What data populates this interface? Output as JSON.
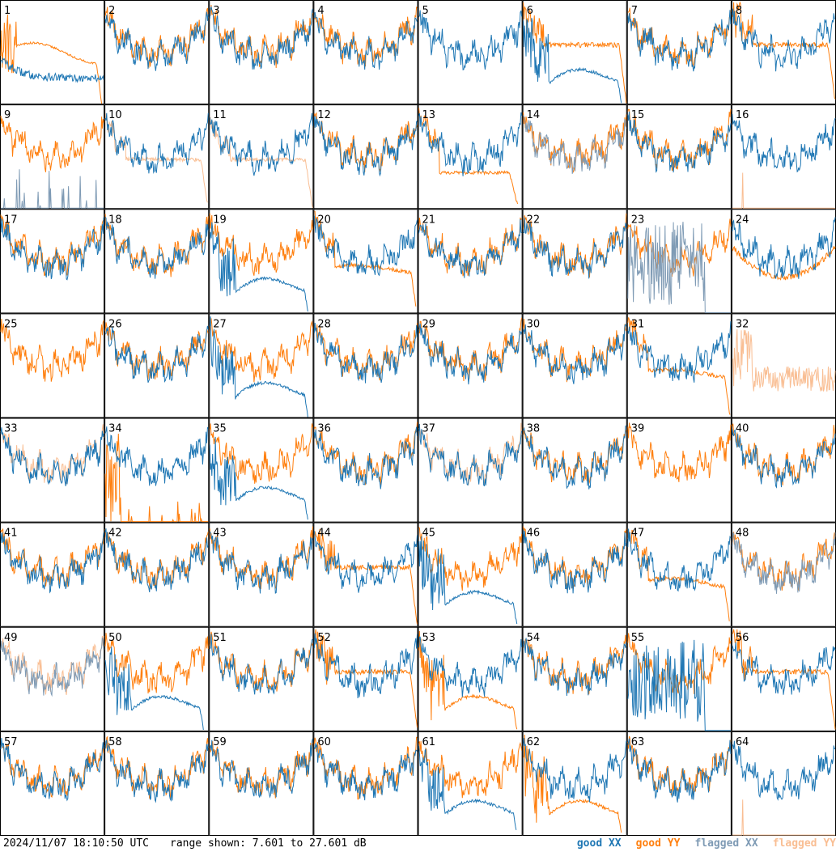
{
  "chart_data": {
    "type": "line",
    "layout": "small-multiples grid",
    "grid": {
      "rows": 8,
      "cols": 8
    },
    "ylim": [
      7.601,
      27.601
    ],
    "y_unit": "dB",
    "legend": [
      {
        "label": "good XX",
        "series": "good-xx",
        "color": "#1f77b4"
      },
      {
        "label": "good YY",
        "series": "good-yy",
        "color": "#ff7f0e"
      },
      {
        "label": "flagged XX",
        "series": "flagged-xx",
        "color": "#7f9bb5"
      },
      {
        "label": "flagged YY",
        "series": "flagged-yy",
        "color": "#f9be93"
      }
    ],
    "colors": {
      "good_xx": "#1f77b4",
      "good_yy": "#ff7f0e",
      "flagged_xx": "#7f9bb5",
      "flagged_yy": "#f9be93",
      "panel_border": "#000000",
      "label_text": "#000000"
    },
    "panels": [
      {
        "label": "1",
        "x_mode": "low",
        "y_mode": "bump-high"
      },
      {
        "label": "2",
        "x_mode": "normal",
        "y_mode": "normal"
      },
      {
        "label": "3",
        "x_mode": "normal",
        "y_mode": "normal"
      },
      {
        "label": "4",
        "x_mode": "normal",
        "y_mode": "normal"
      },
      {
        "label": "5",
        "x_mode": "normal",
        "y_mode": "off"
      },
      {
        "label": "6",
        "x_mode": "bump-low",
        "y_mode": "flat-high"
      },
      {
        "label": "7",
        "x_mode": "normal",
        "y_mode": "normal"
      },
      {
        "label": "8",
        "x_mode": "normal",
        "y_mode": "flat-high"
      },
      {
        "label": "9",
        "x_mode": "flag-spikes",
        "y_mode": "normal"
      },
      {
        "label": "10",
        "x_mode": "normal",
        "y_mode": "flagged-flat"
      },
      {
        "label": "11",
        "x_mode": "normal",
        "y_mode": "flagged-flat"
      },
      {
        "label": "12",
        "x_mode": "normal",
        "y_mode": "normal"
      },
      {
        "label": "13",
        "x_mode": "normal",
        "y_mode": "drop"
      },
      {
        "label": "14",
        "x_mode": "flagged",
        "y_mode": "normal"
      },
      {
        "label": "15",
        "x_mode": "normal",
        "y_mode": "normal"
      },
      {
        "label": "16",
        "x_mode": "normal",
        "y_mode": "flagged-spike"
      },
      {
        "label": "17",
        "x_mode": "normal",
        "y_mode": "normal"
      },
      {
        "label": "18",
        "x_mode": "normal",
        "y_mode": "normal"
      },
      {
        "label": "19",
        "x_mode": "bump-low",
        "y_mode": "normal"
      },
      {
        "label": "20",
        "x_mode": "normal",
        "y_mode": "flat-low"
      },
      {
        "label": "21",
        "x_mode": "normal",
        "y_mode": "normal"
      },
      {
        "label": "22",
        "x_mode": "normal",
        "y_mode": "normal"
      },
      {
        "label": "23",
        "x_mode": "flag-noise",
        "y_mode": "normal"
      },
      {
        "label": "24",
        "x_mode": "normal",
        "y_mode": "bump"
      },
      {
        "label": "25",
        "x_mode": "off",
        "y_mode": "normal"
      },
      {
        "label": "26",
        "x_mode": "normal",
        "y_mode": "normal"
      },
      {
        "label": "27",
        "x_mode": "bump-low",
        "y_mode": "normal"
      },
      {
        "label": "28",
        "x_mode": "normal",
        "y_mode": "normal"
      },
      {
        "label": "29",
        "x_mode": "normal",
        "y_mode": "normal"
      },
      {
        "label": "30",
        "x_mode": "normal",
        "y_mode": "normal"
      },
      {
        "label": "31",
        "x_mode": "normal",
        "y_mode": "flat-low"
      },
      {
        "label": "32",
        "x_mode": "off",
        "y_mode": "flagged-noise"
      },
      {
        "label": "33",
        "x_mode": "normal",
        "y_mode": "flagged"
      },
      {
        "label": "34",
        "x_mode": "normal",
        "y_mode": "spikes"
      },
      {
        "label": "35",
        "x_mode": "bump-low",
        "y_mode": "normal"
      },
      {
        "label": "36",
        "x_mode": "normal",
        "y_mode": "normal"
      },
      {
        "label": "37",
        "x_mode": "normal",
        "y_mode": "flagged"
      },
      {
        "label": "38",
        "x_mode": "normal",
        "y_mode": "normal"
      },
      {
        "label": "39",
        "x_mode": "spike",
        "y_mode": "normal"
      },
      {
        "label": "40",
        "x_mode": "normal",
        "y_mode": "normal"
      },
      {
        "label": "41",
        "x_mode": "normal",
        "y_mode": "normal"
      },
      {
        "label": "42",
        "x_mode": "normal",
        "y_mode": "normal"
      },
      {
        "label": "43",
        "x_mode": "normal",
        "y_mode": "normal"
      },
      {
        "label": "44",
        "x_mode": "normal",
        "y_mode": "flat-high"
      },
      {
        "label": "45",
        "x_mode": "bump-low",
        "y_mode": "normal"
      },
      {
        "label": "46",
        "x_mode": "normal",
        "y_mode": "normal"
      },
      {
        "label": "47",
        "x_mode": "normal",
        "y_mode": "flat-low"
      },
      {
        "label": "48",
        "x_mode": "flagged",
        "y_mode": "normal"
      },
      {
        "label": "49",
        "x_mode": "flagged",
        "y_mode": "flagged"
      },
      {
        "label": "50",
        "x_mode": "bump-low",
        "y_mode": "normal"
      },
      {
        "label": "51",
        "x_mode": "normal",
        "y_mode": "normal"
      },
      {
        "label": "52",
        "x_mode": "normal",
        "y_mode": "flat-high"
      },
      {
        "label": "53",
        "x_mode": "normal",
        "y_mode": "bump-low"
      },
      {
        "label": "54",
        "x_mode": "normal",
        "y_mode": "normal"
      },
      {
        "label": "55",
        "x_mode": "flag-noise-good",
        "y_mode": "normal"
      },
      {
        "label": "56",
        "x_mode": "normal",
        "y_mode": "flat-high"
      },
      {
        "label": "57",
        "x_mode": "normal",
        "y_mode": "normal"
      },
      {
        "label": "58",
        "x_mode": "normal",
        "y_mode": "normal"
      },
      {
        "label": "59",
        "x_mode": "normal",
        "y_mode": "normal"
      },
      {
        "label": "60",
        "x_mode": "normal",
        "y_mode": "normal"
      },
      {
        "label": "61",
        "x_mode": "bump-low",
        "y_mode": "normal"
      },
      {
        "label": "62",
        "x_mode": "normal",
        "y_mode": "bump-low"
      },
      {
        "label": "63",
        "x_mode": "normal",
        "y_mode": "normal"
      },
      {
        "label": "64",
        "x_mode": "normal",
        "y_mode": "flagged-spike"
      }
    ]
  },
  "footer": {
    "timestamp": "2024/11/07 18:10:50 UTC",
    "range_text": "range shown: 7.601 to 27.601 dB",
    "legend": {
      "good_xx": "good XX",
      "good_yy": "good YY",
      "flagged_xx": "flagged XX",
      "flagged_yy": "flagged YY"
    }
  }
}
